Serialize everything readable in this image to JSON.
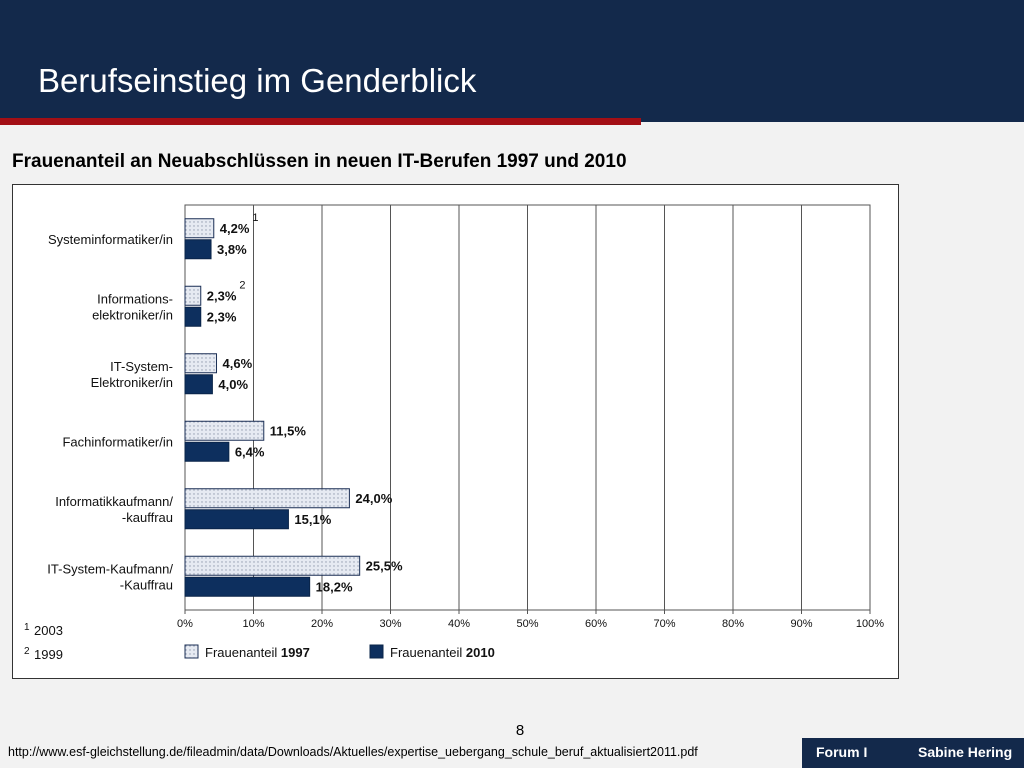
{
  "slide": {
    "title": "Berufseinstieg im Genderblick",
    "subtitle": "Frauenanteil an Neuabschlüssen in neuen IT-Berufen 1997 und 2010",
    "page_number": "8",
    "source_url": "http://www.esf-gleichstellung.de/fileadmin/data/Downloads/Aktuelles/expertise_uebergang_schule_beruf_aktualisiert2011.pdf",
    "footer_left": "Forum I",
    "footer_right": "Sabine Hering"
  },
  "colors": {
    "header_bg": "#13294b",
    "accent": "#a30f15",
    "series_1997": "#e6eaf2",
    "series_2010": "#0d2f5e"
  },
  "chart_data": {
    "type": "bar",
    "orientation": "horizontal",
    "categories": [
      [
        "Systeminformatiker/in"
      ],
      [
        "Informations-",
        "elektroniker/in"
      ],
      [
        "IT-System-",
        "Elektroniker/in"
      ],
      [
        "Fachinformatiker/in"
      ],
      [
        "Informatikkaufmann/",
        "-kauffrau"
      ],
      [
        "IT-System-Kaufmann/",
        "-Kauffrau"
      ]
    ],
    "series": [
      {
        "name": "Frauenanteil 1997",
        "values": [
          4.2,
          2.3,
          4.6,
          11.5,
          24.0,
          25.5
        ],
        "labels": [
          "4,2%",
          "2,3%",
          "4,6%",
          "11,5%",
          "24,0%",
          "25,5%"
        ]
      },
      {
        "name": "Frauenanteil 2010",
        "values": [
          3.8,
          2.3,
          4.0,
          6.4,
          15.1,
          18.2
        ],
        "labels": [
          "3,8%",
          "2,3%",
          "4,0%",
          "6,4%",
          "15,1%",
          "18,2%"
        ]
      }
    ],
    "xlim": [
      0,
      100
    ],
    "ticks": [
      "0%",
      "10%",
      "20%",
      "30%",
      "40%",
      "50%",
      "60%",
      "70%",
      "80%",
      "90%",
      "100%"
    ],
    "grid": true,
    "legend": [
      {
        "prefix": "Frauenanteil ",
        "year": "1997"
      },
      {
        "prefix": "Frauenanteil ",
        "year": "2010"
      }
    ],
    "legend_position": "bottom",
    "superscripts": [
      {
        "category_index": 0,
        "mark": "1"
      },
      {
        "category_index": 1,
        "mark": "2"
      }
    ],
    "footnotes": [
      {
        "mark": "1",
        "text": "2003"
      },
      {
        "mark": "2",
        "text": "1999"
      }
    ]
  }
}
